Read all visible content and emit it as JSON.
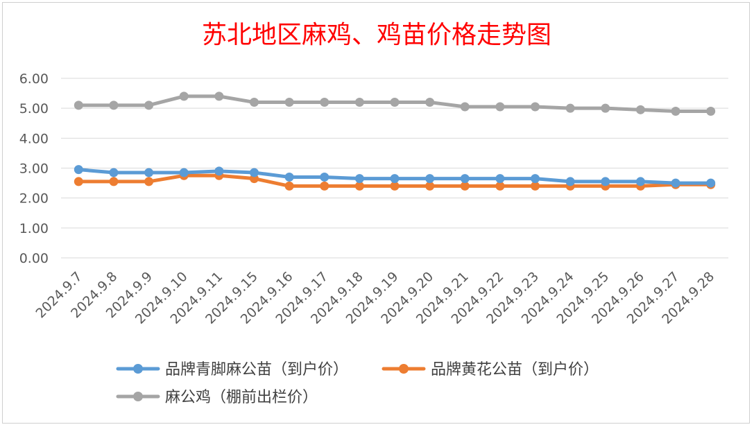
{
  "chart_data": {
    "type": "line",
    "title": "苏北地区麻鸡、鸡苗价格走势图",
    "xlabel": "",
    "ylabel": "",
    "ylim": [
      0,
      6
    ],
    "yticks": [
      "0.00",
      "1.00",
      "2.00",
      "3.00",
      "4.00",
      "5.00",
      "6.00"
    ],
    "grid": true,
    "legend_position": "bottom",
    "categories": [
      "2024.9.7",
      "2024.9.8",
      "2024.9.9",
      "2024.9.10",
      "2024.9.11",
      "2024.9.15",
      "2024.9.16",
      "2024.9.17",
      "2024.9.18",
      "2024.9.19",
      "2024.9.20",
      "2024.9.21",
      "2024.9.22",
      "2024.9.23",
      "2024.9.24",
      "2024.9.25",
      "2024.9.26",
      "2024.9.27",
      "2024.9.28"
    ],
    "series": [
      {
        "name": "品牌青脚麻公苗（到户价）",
        "color": "#5b9bd5",
        "values": [
          2.95,
          2.85,
          2.85,
          2.85,
          2.9,
          2.85,
          2.7,
          2.7,
          2.65,
          2.65,
          2.65,
          2.65,
          2.65,
          2.65,
          2.55,
          2.55,
          2.55,
          2.5,
          2.5
        ]
      },
      {
        "name": "品牌黄花公苗（到户价）",
        "color": "#ed7d31",
        "values": [
          2.55,
          2.55,
          2.55,
          2.75,
          2.75,
          2.65,
          2.4,
          2.4,
          2.4,
          2.4,
          2.4,
          2.4,
          2.4,
          2.4,
          2.4,
          2.4,
          2.4,
          2.45,
          2.45
        ]
      },
      {
        "name": "麻公鸡（棚前出栏价）",
        "color": "#a5a5a5",
        "values": [
          5.1,
          5.1,
          5.1,
          5.4,
          5.4,
          5.2,
          5.2,
          5.2,
          5.2,
          5.2,
          5.2,
          5.05,
          5.05,
          5.05,
          5.0,
          5.0,
          4.95,
          4.9,
          4.9
        ]
      }
    ],
    "title_color": "#ff0000"
  }
}
